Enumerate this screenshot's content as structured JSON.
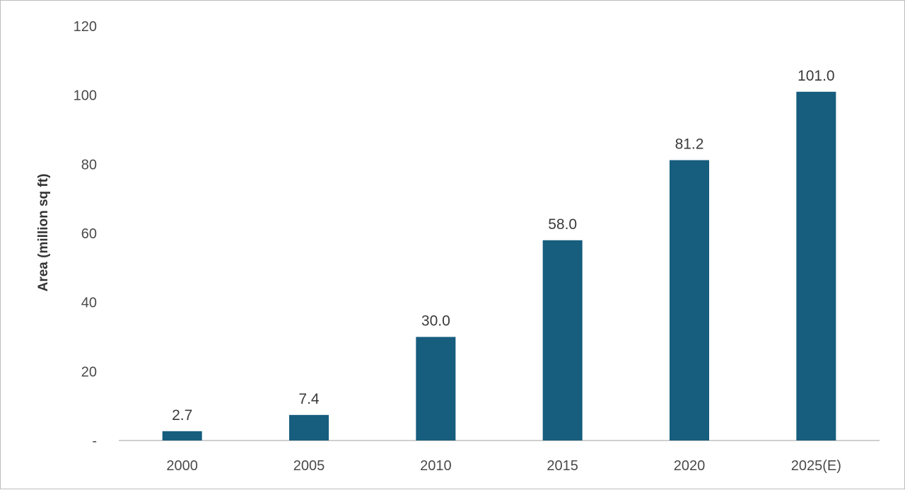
{
  "chart_data": {
    "type": "bar",
    "categories": [
      "2000",
      "2005",
      "2010",
      "2015",
      "2020",
      "2025(E)"
    ],
    "values": [
      2.7,
      7.4,
      30.0,
      58.0,
      81.2,
      101.0
    ],
    "data_labels": [
      "2.7",
      "7.4",
      "30.0",
      "58.0",
      "81.2",
      "101.0"
    ],
    "title": "",
    "xlabel": "",
    "ylabel": "Area (million sq ft)",
    "ylim": [
      0,
      120
    ],
    "y_ticks": [
      0,
      20,
      40,
      60,
      80,
      100,
      120
    ],
    "y_tick_labels": [
      "-",
      "20",
      "40",
      "60",
      "80",
      "100",
      "120"
    ],
    "grid": false,
    "legend": "none",
    "colors": {
      "bar": "#165d7e",
      "axis": "#bfbfbf"
    }
  }
}
